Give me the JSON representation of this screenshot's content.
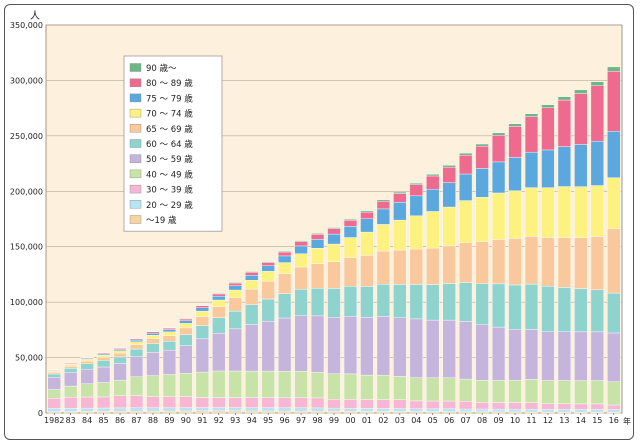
{
  "chart_data": {
    "type": "bar",
    "stacked": true,
    "unit_label": "人",
    "x_unit": "年",
    "categories": [
      "1982",
      "83",
      "84",
      "85",
      "86",
      "87",
      "88",
      "89",
      "90",
      "91",
      "92",
      "93",
      "94",
      "95",
      "96",
      "97",
      "98",
      "99",
      "00",
      "01",
      "02",
      "03",
      "04",
      "05",
      "06",
      "07",
      "08",
      "09",
      "10",
      "11",
      "12",
      "13",
      "14",
      "15",
      "16"
    ],
    "ylim": [
      0,
      350000
    ],
    "yticks": [
      0,
      50000,
      100000,
      150000,
      200000,
      250000,
      300000,
      350000
    ],
    "ytick_labels": [
      "0",
      "50,000",
      "100,000",
      "150,000",
      "200,000",
      "250,000",
      "300,000",
      "350,000"
    ],
    "grid": true,
    "legend_position": "top-left",
    "series": [
      {
        "name": "～19 歳",
        "color": "#f6d3a0",
        "values": [
          1200,
          1300,
          1400,
          1500,
          1600,
          1700,
          1700,
          1700,
          1800,
          1900,
          1900,
          1900,
          1800,
          1800,
          1700,
          1700,
          1600,
          1600,
          1500,
          1400,
          1400,
          1300,
          1300,
          1200,
          1200,
          1100,
          1100,
          1000,
          1000,
          900,
          900,
          900,
          800,
          800,
          800
        ]
      },
      {
        "name": "20 ～ 29 歳",
        "color": "#b7e3f3",
        "values": [
          3000,
          3000,
          3000,
          3000,
          3000,
          3000,
          3000,
          3000,
          3000,
          3000,
          3000,
          3000,
          3000,
          3000,
          3000,
          3000,
          3000,
          2800,
          2800,
          2800,
          2700,
          2700,
          2600,
          2600,
          2600,
          2500,
          2500,
          2500,
          2500,
          2400,
          2400,
          2400,
          2400,
          2400,
          2400
        ]
      },
      {
        "name": "30 ～ 39 歳",
        "color": "#f6b6d4",
        "values": [
          9000,
          10000,
          10000,
          10000,
          11000,
          11000,
          10000,
          10000,
          10000,
          9000,
          9000,
          9000,
          9000,
          9000,
          9000,
          9000,
          9000,
          8000,
          8000,
          8000,
          8000,
          8000,
          7000,
          7000,
          7000,
          7000,
          6000,
          6000,
          6000,
          6000,
          5000,
          5000,
          5000,
          5000,
          4000
        ]
      },
      {
        "name": "40 ～ 49 歳",
        "color": "#c8e3a8",
        "values": [
          8000,
          10000,
          12000,
          13000,
          14000,
          17000,
          19000,
          20000,
          21000,
          23000,
          24000,
          24000,
          24000,
          24000,
          24000,
          24000,
          23000,
          23000,
          23000,
          22000,
          22000,
          21000,
          21000,
          21000,
          21000,
          20000,
          20000,
          20000,
          20000,
          21000,
          21000,
          21000,
          21000,
          21000,
          21000
        ]
      },
      {
        "name": "50 ～ 59 歳",
        "color": "#c5b5dd",
        "values": [
          11000,
          12000,
          13000,
          14000,
          15000,
          18000,
          21000,
          22000,
          25000,
          30000,
          34000,
          38000,
          42000,
          45000,
          48000,
          50000,
          51000,
          51000,
          52000,
          52000,
          53000,
          53000,
          53000,
          52000,
          52000,
          52000,
          50000,
          48000,
          46000,
          45000,
          44000,
          44000,
          44000,
          44000,
          44000
        ]
      },
      {
        "name": "60 ～ 64 歳",
        "color": "#8fd3cf",
        "values": [
          3000,
          4000,
          5000,
          6000,
          6000,
          7000,
          8000,
          8000,
          10000,
          12000,
          14000,
          16000,
          18000,
          20000,
          22000,
          24000,
          25000,
          26000,
          27000,
          28000,
          29000,
          30000,
          31000,
          32000,
          33000,
          35000,
          37000,
          39000,
          40000,
          41000,
          41000,
          40000,
          39000,
          38000,
          36000
        ]
      },
      {
        "name": "65 ～ 69 歳",
        "color": "#f9c99d",
        "values": [
          1500,
          2000,
          2500,
          3000,
          3500,
          4000,
          4500,
          5000,
          6000,
          8000,
          10000,
          12000,
          14000,
          16000,
          18000,
          20000,
          22000,
          24000,
          26000,
          28000,
          30000,
          31000,
          32000,
          33000,
          34000,
          36000,
          38000,
          40000,
          42000,
          43000,
          44000,
          45000,
          46000,
          48000,
          58000
        ]
      },
      {
        "name": "70 ～ 74 歳",
        "color": "#fdf17f",
        "values": [
          1000,
          1200,
          1500,
          1800,
          2000,
          2500,
          3000,
          3500,
          4000,
          5000,
          6000,
          7000,
          8000,
          9000,
          10000,
          12000,
          14000,
          16000,
          18000,
          21000,
          24000,
          27000,
          30000,
          33000,
          35000,
          38000,
          40000,
          42000,
          43000,
          44000,
          45000,
          46000,
          46000,
          46000,
          46000
        ]
      },
      {
        "name": "75 ～ 79 歳",
        "color": "#5aa8de",
        "values": [
          500,
          600,
          800,
          1000,
          1200,
          1500,
          1800,
          2100,
          2500,
          3000,
          3500,
          4000,
          4500,
          5000,
          6000,
          7000,
          8000,
          9000,
          10000,
          12000,
          14000,
          16000,
          18000,
          20000,
          22000,
          24000,
          26000,
          28000,
          30000,
          32000,
          34000,
          36000,
          38000,
          40000,
          42000
        ]
      },
      {
        "name": "80 ～ 89 歳",
        "color": "#ee6a8f",
        "values": [
          600,
          700,
          800,
          900,
          1000,
          1100,
          1200,
          1300,
          1500,
          1800,
          2000,
          2300,
          2600,
          3000,
          3500,
          4000,
          4500,
          5000,
          5500,
          6000,
          7000,
          8000,
          10000,
          12000,
          14000,
          17000,
          20000,
          24000,
          28000,
          32000,
          38000,
          42000,
          46000,
          50000,
          54000
        ]
      },
      {
        "name": "90 歳～",
        "color": "#6fb587",
        "values": [
          200,
          200,
          300,
          300,
          300,
          400,
          400,
          400,
          500,
          500,
          600,
          600,
          700,
          700,
          800,
          800,
          900,
          900,
          1000,
          1100,
          1200,
          1300,
          1400,
          1500,
          1600,
          1800,
          2000,
          2200,
          2400,
          2600,
          2800,
          3000,
          3300,
          3600,
          4000
        ]
      }
    ]
  }
}
